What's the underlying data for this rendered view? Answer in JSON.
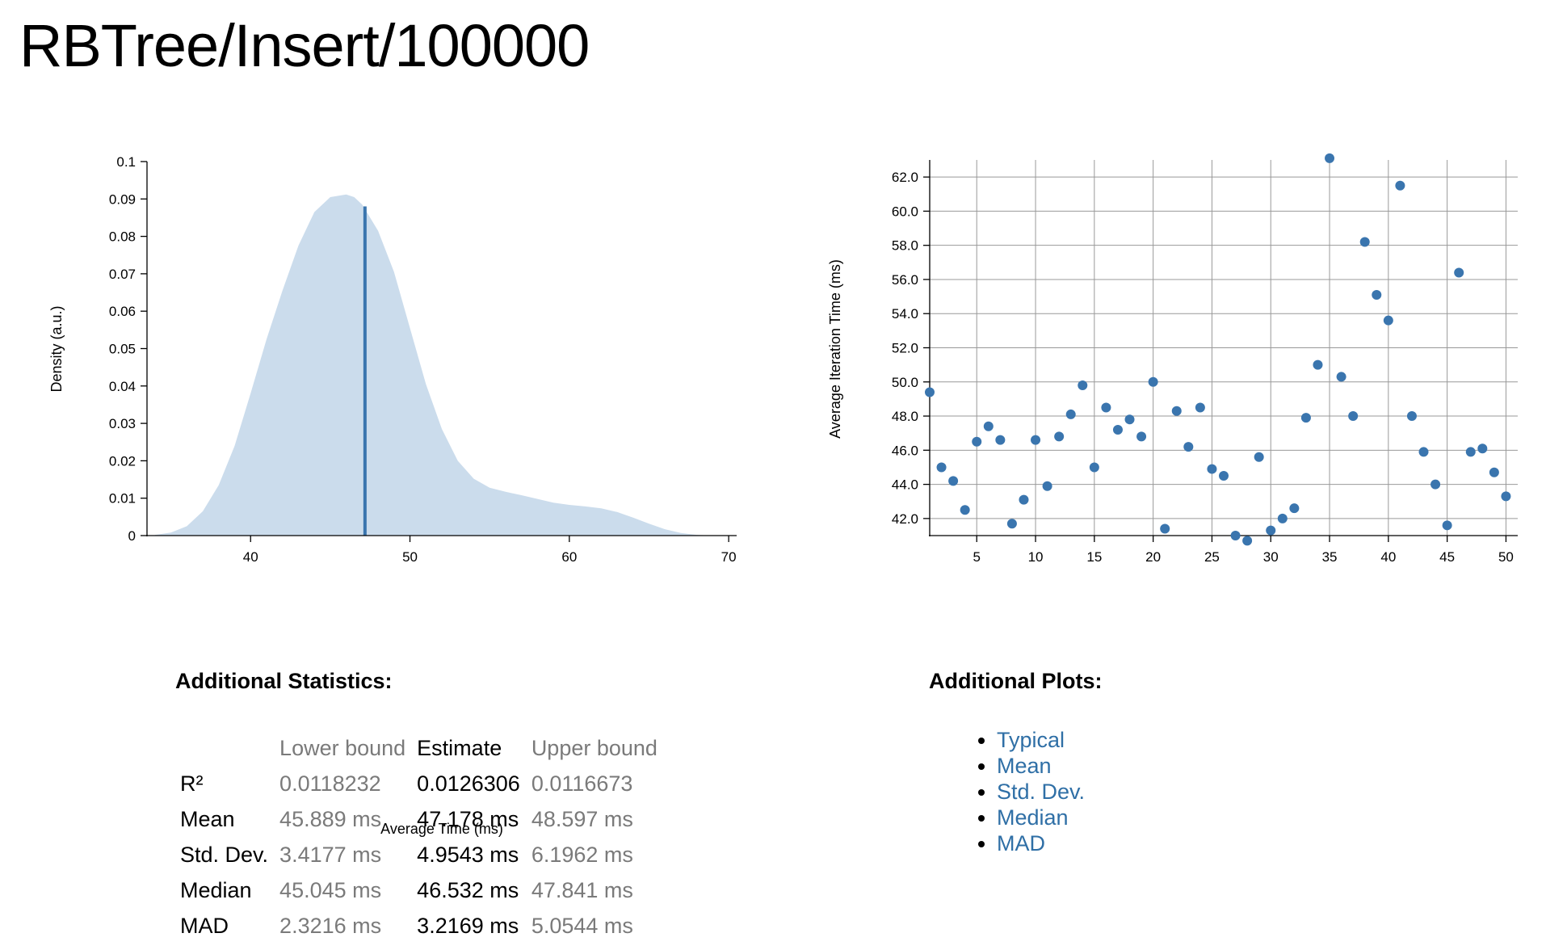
{
  "page": {
    "title": "RBTree/Insert/100000"
  },
  "chart_data": [
    {
      "type": "area",
      "title": "",
      "xlabel": "Average Time (ms)",
      "ylabel": "Density (a.u.)",
      "xlim": [
        33.5,
        70.5
      ],
      "ylim": [
        0,
        0.1
      ],
      "x_ticks": [
        "40",
        "50",
        "60",
        "70"
      ],
      "y_ticks": [
        "0",
        "0.01",
        "0.02",
        "0.03",
        "0.04",
        "0.05",
        "0.06",
        "0.07",
        "0.08",
        "0.09",
        "0.1"
      ],
      "grid": false,
      "series": [
        {
          "x": [
            34.0,
            35.0,
            36.0,
            37.0,
            38.0,
            39.0,
            40.0,
            41.0,
            42.0,
            43.0,
            44.0,
            45.0,
            46.0,
            46.5,
            47.0,
            48.0,
            49.0,
            50.0,
            51.0,
            52.0,
            53.0,
            54.0,
            55.0,
            56.0,
            57.0,
            58.0,
            59.0,
            60.0,
            61.0,
            62.0,
            63.0,
            64.0,
            65.0,
            66.0,
            67.0,
            68.0,
            69.0
          ],
          "y": [
            0.0002,
            0.0008,
            0.0025,
            0.0065,
            0.0135,
            0.024,
            0.038,
            0.0525,
            0.0655,
            0.0775,
            0.0865,
            0.0905,
            0.0912,
            0.0905,
            0.0885,
            0.0815,
            0.0705,
            0.0555,
            0.0405,
            0.0285,
            0.02,
            0.0152,
            0.0128,
            0.0117,
            0.0108,
            0.0098,
            0.0088,
            0.0082,
            0.0078,
            0.0073,
            0.0063,
            0.0048,
            0.0032,
            0.0017,
            0.0007,
            0.0002,
            0.0
          ]
        }
      ],
      "estimate_line": {
        "x": 47.178,
        "y": 0.088
      }
    },
    {
      "type": "scatter",
      "title": "",
      "xlabel": "",
      "ylabel": "Average Iteration Time (ms)",
      "xlim": [
        1,
        51
      ],
      "ylim": [
        41.0,
        63.0
      ],
      "x_ticks": [
        "5",
        "10",
        "15",
        "20",
        "25",
        "30",
        "35",
        "40",
        "45",
        "50"
      ],
      "y_ticks": [
        "42.0",
        "44.0",
        "46.0",
        "48.0",
        "50.0",
        "52.0",
        "54.0",
        "56.0",
        "58.0",
        "60.0",
        "62.0"
      ],
      "grid": true,
      "x": [
        1,
        2,
        3,
        4,
        5,
        6,
        7,
        8,
        9,
        10,
        11,
        12,
        13,
        14,
        15,
        16,
        17,
        18,
        19,
        20,
        21,
        22,
        23,
        24,
        25,
        26,
        27,
        28,
        29,
        30,
        31,
        32,
        33,
        34,
        35,
        36,
        37,
        38,
        39,
        40,
        41,
        42,
        43,
        44,
        45,
        46,
        47,
        48,
        49,
        50
      ],
      "y": [
        49.4,
        45.0,
        44.2,
        42.5,
        46.5,
        47.4,
        46.6,
        41.7,
        43.1,
        46.6,
        43.9,
        46.8,
        48.1,
        49.8,
        45.0,
        48.5,
        47.2,
        47.8,
        46.8,
        50.0,
        41.4,
        48.3,
        46.2,
        48.5,
        44.9,
        44.5,
        41.0,
        40.7,
        45.6,
        41.3,
        42.0,
        42.6,
        47.9,
        51.0,
        63.1,
        50.3,
        48.0,
        58.2,
        55.1,
        53.6,
        61.5,
        48.0,
        45.9,
        44.0,
        41.6,
        56.4,
        45.9,
        46.1,
        44.7,
        43.3
      ],
      "point_color": "#3a75ae"
    }
  ],
  "statistics": {
    "heading": "Additional Statistics:",
    "headers": [
      "",
      "Lower bound",
      "Estimate",
      "Upper bound"
    ],
    "rows": [
      {
        "label": "R²",
        "lower": "0.0118232",
        "estimate": "0.0126306",
        "upper": "0.0116673"
      },
      {
        "label": "Mean",
        "lower": "45.889 ms",
        "estimate": "47.178 ms",
        "upper": "48.597 ms"
      },
      {
        "label": "Std. Dev.",
        "lower": "3.4177 ms",
        "estimate": "4.9543 ms",
        "upper": "6.1962 ms"
      },
      {
        "label": "Median",
        "lower": "45.045 ms",
        "estimate": "46.532 ms",
        "upper": "47.841 ms"
      },
      {
        "label": "MAD",
        "lower": "2.3216 ms",
        "estimate": "3.2169 ms",
        "upper": "5.0544 ms"
      }
    ]
  },
  "additional_plots": {
    "heading": "Additional Plots:",
    "links": [
      "Typical",
      "Mean",
      "Std. Dev.",
      "Median",
      "MAD"
    ]
  },
  "colors": {
    "fill": "#cbdcec",
    "line": "#3a75ae",
    "link": "#2f6fa6",
    "muted_text": "#7a7a7a"
  }
}
